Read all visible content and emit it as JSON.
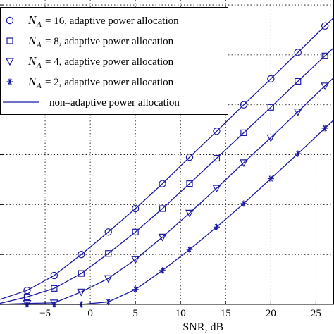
{
  "chart_data": {
    "type": "line",
    "xlabel": "SNR, dB",
    "ylabel": "",
    "title": "",
    "xlim": [
      -10,
      27
    ],
    "ylim": [
      0,
      6.1
    ],
    "xticks": [
      -5,
      0,
      5,
      10,
      15,
      20,
      25
    ],
    "grid": true,
    "legend_position": "top-left",
    "colors": {
      "series": "#1a1aa6",
      "grid": "#000000",
      "axes": "#000000"
    },
    "series": [
      {
        "name": "= 16, adaptive power allocation",
        "label_symbol": "N",
        "label_subscript": "A",
        "marker": "circle",
        "x": [
          -7,
          -4,
          -1,
          2,
          5,
          8,
          11,
          14,
          17,
          20,
          23,
          26
        ],
        "y": [
          0.28,
          0.58,
          1.0,
          1.45,
          1.92,
          2.42,
          2.95,
          3.47,
          4.0,
          4.52,
          5.05,
          5.58
        ]
      },
      {
        "name": "= 8, adaptive power allocation",
        "label_symbol": "N",
        "label_subscript": "A",
        "marker": "square",
        "x": [
          -7,
          -4,
          -1,
          2,
          5,
          8,
          11,
          14,
          17,
          20,
          23,
          26
        ],
        "y": [
          0.15,
          0.32,
          0.62,
          1.02,
          1.45,
          1.92,
          2.42,
          2.93,
          3.44,
          3.95,
          4.47,
          4.98
        ]
      },
      {
        "name": "= 4, adaptive power allocation",
        "label_symbol": "N",
        "label_subscript": "A",
        "marker": "triangle-down",
        "x": [
          -7,
          -4,
          -1,
          2,
          5,
          8,
          11,
          14,
          17,
          20,
          23,
          26
        ],
        "y": [
          0.02,
          0.03,
          0.25,
          0.52,
          0.9,
          1.35,
          1.83,
          2.33,
          2.84,
          3.34,
          3.86,
          4.38
        ]
      },
      {
        "name": "= 2, adaptive power allocation",
        "label_symbol": "N",
        "label_subscript": "A",
        "marker": "asterisk",
        "x": [
          -7,
          -4,
          -1,
          2,
          5,
          8,
          11,
          14,
          17,
          20,
          23,
          26
        ],
        "y": [
          0.0,
          0.0,
          0.0,
          0.05,
          0.3,
          0.68,
          1.1,
          1.55,
          2.02,
          2.52,
          3.02,
          3.53
        ]
      },
      {
        "name": "non–adaptive power allocation",
        "marker": "line",
        "curves": [
          {
            "x": [
              -10,
              -7,
              -4,
              -1,
              2,
              5,
              8,
              11,
              14,
              17,
              20,
              23,
              26,
              27
            ],
            "y": [
              0.1,
              0.28,
              0.58,
              1.0,
              1.45,
              1.92,
              2.42,
              2.95,
              3.47,
              4.0,
              4.52,
              5.05,
              5.58,
              5.75
            ]
          },
          {
            "x": [
              -10,
              -7,
              -4,
              -1,
              2,
              5,
              8,
              11,
              14,
              17,
              20,
              23,
              26,
              27
            ],
            "y": [
              0.02,
              0.15,
              0.32,
              0.62,
              1.02,
              1.45,
              1.92,
              2.42,
              2.93,
              3.44,
              3.95,
              4.47,
              4.98,
              5.15
            ]
          },
          {
            "x": [
              -10,
              -7,
              -4,
              -1,
              2,
              5,
              8,
              11,
              14,
              17,
              20,
              23,
              26,
              27
            ],
            "y": [
              0.0,
              0.02,
              0.03,
              0.25,
              0.52,
              0.9,
              1.35,
              1.83,
              2.33,
              2.84,
              3.34,
              3.86,
              4.38,
              4.55
            ]
          },
          {
            "x": [
              -10,
              -7,
              -4,
              -1,
              2,
              5,
              8,
              11,
              14,
              17,
              20,
              23,
              26,
              27
            ],
            "y": [
              0.0,
              0.0,
              0.0,
              0.0,
              0.05,
              0.3,
              0.68,
              1.1,
              1.55,
              2.02,
              2.52,
              3.02,
              3.53,
              3.7
            ]
          }
        ]
      }
    ]
  }
}
